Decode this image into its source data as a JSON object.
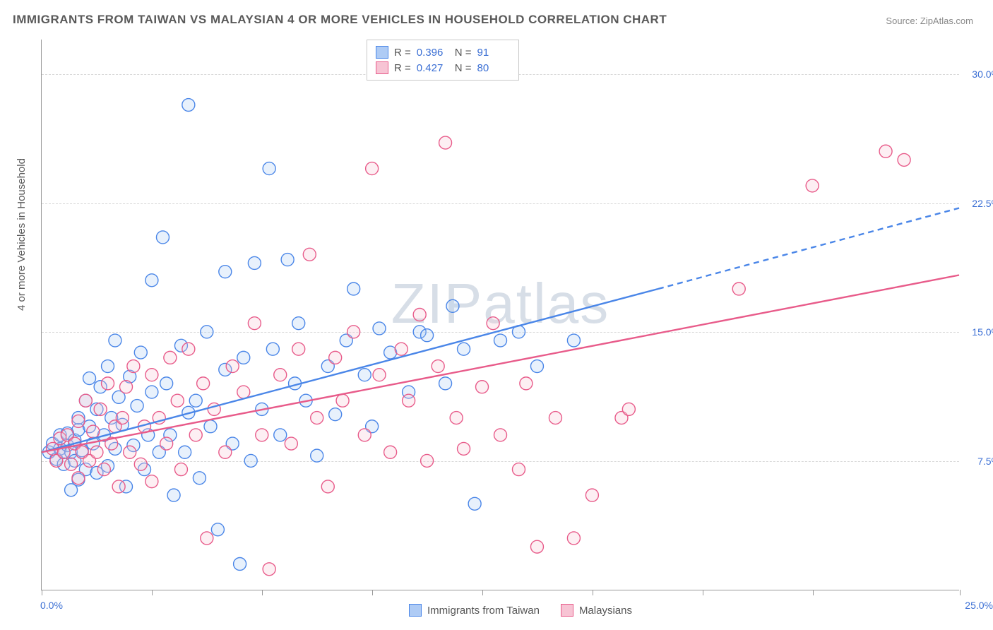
{
  "title": "IMMIGRANTS FROM TAIWAN VS MALAYSIAN 4 OR MORE VEHICLES IN HOUSEHOLD CORRELATION CHART",
  "source_label": "Source:",
  "source_name": "ZipAtlas.com",
  "watermark": "ZIPatlas",
  "y_axis_title": "4 or more Vehicles in Household",
  "chart": {
    "type": "scatter",
    "xlim": [
      0,
      25
    ],
    "ylim": [
      0,
      32
    ],
    "x_ticks": [
      0,
      3,
      6,
      9,
      12,
      15,
      18,
      21,
      25
    ],
    "x_label_min": "0.0%",
    "x_label_max": "25.0%",
    "y_gridlines": [
      7.5,
      15.0,
      22.5,
      30.0
    ],
    "y_tick_labels": [
      "7.5%",
      "15.0%",
      "22.5%",
      "30.0%"
    ],
    "background_color": "#ffffff",
    "grid_color": "#d8d8d8",
    "marker_radius": 9,
    "marker_stroke_width": 1.4,
    "marker_fill_opacity": 0.28,
    "series": [
      {
        "name": "Immigrants from Taiwan",
        "color_stroke": "#4a86e8",
        "color_fill": "#aecbf5",
        "R": "0.396",
        "N": "91",
        "trend": {
          "x1": 0,
          "y1": 8.0,
          "x2_solid": 16.8,
          "y2_solid": 17.5,
          "x2_dash": 25,
          "y2_dash": 22.2,
          "width": 2.4
        },
        "points": [
          [
            0.2,
            8.0
          ],
          [
            0.3,
            8.5
          ],
          [
            0.4,
            7.6
          ],
          [
            0.5,
            8.2
          ],
          [
            0.5,
            9.0
          ],
          [
            0.6,
            8.0
          ],
          [
            0.6,
            7.3
          ],
          [
            0.7,
            9.1
          ],
          [
            0.7,
            8.4
          ],
          [
            0.8,
            8.0
          ],
          [
            0.8,
            5.8
          ],
          [
            0.9,
            8.7
          ],
          [
            0.9,
            7.5
          ],
          [
            1.0,
            9.3
          ],
          [
            1.0,
            10.0
          ],
          [
            1.0,
            6.4
          ],
          [
            1.1,
            8.1
          ],
          [
            1.2,
            11.0
          ],
          [
            1.2,
            7.0
          ],
          [
            1.3,
            9.5
          ],
          [
            1.3,
            12.3
          ],
          [
            1.4,
            8.5
          ],
          [
            1.5,
            10.5
          ],
          [
            1.5,
            6.8
          ],
          [
            1.6,
            11.8
          ],
          [
            1.7,
            9.0
          ],
          [
            1.8,
            13.0
          ],
          [
            1.8,
            7.2
          ],
          [
            1.9,
            10.0
          ],
          [
            2.0,
            8.2
          ],
          [
            2.0,
            14.5
          ],
          [
            2.1,
            11.2
          ],
          [
            2.2,
            9.6
          ],
          [
            2.3,
            6.0
          ],
          [
            2.4,
            12.4
          ],
          [
            2.5,
            8.4
          ],
          [
            2.6,
            10.7
          ],
          [
            2.7,
            13.8
          ],
          [
            2.8,
            7.0
          ],
          [
            2.9,
            9.0
          ],
          [
            3.0,
            11.5
          ],
          [
            3.0,
            18.0
          ],
          [
            3.2,
            8.0
          ],
          [
            3.3,
            20.5
          ],
          [
            3.4,
            12.0
          ],
          [
            3.5,
            9.0
          ],
          [
            3.6,
            5.5
          ],
          [
            3.8,
            14.2
          ],
          [
            3.9,
            8.0
          ],
          [
            4.0,
            10.3
          ],
          [
            4.0,
            28.2
          ],
          [
            4.2,
            11.0
          ],
          [
            4.3,
            6.5
          ],
          [
            4.5,
            15.0
          ],
          [
            4.6,
            9.5
          ],
          [
            4.8,
            3.5
          ],
          [
            5.0,
            18.5
          ],
          [
            5.0,
            12.8
          ],
          [
            5.2,
            8.5
          ],
          [
            5.4,
            1.5
          ],
          [
            5.5,
            13.5
          ],
          [
            5.7,
            7.5
          ],
          [
            5.8,
            19.0
          ],
          [
            6.0,
            10.5
          ],
          [
            6.2,
            24.5
          ],
          [
            6.3,
            14.0
          ],
          [
            6.5,
            9.0
          ],
          [
            6.7,
            19.2
          ],
          [
            6.9,
            12.0
          ],
          [
            7.0,
            15.5
          ],
          [
            7.2,
            11.0
          ],
          [
            7.5,
            7.8
          ],
          [
            7.8,
            13.0
          ],
          [
            8.0,
            10.2
          ],
          [
            8.3,
            14.5
          ],
          [
            8.5,
            17.5
          ],
          [
            8.8,
            12.5
          ],
          [
            9.0,
            9.5
          ],
          [
            9.2,
            15.2
          ],
          [
            9.5,
            13.8
          ],
          [
            10.0,
            11.5
          ],
          [
            10.3,
            15.0
          ],
          [
            10.5,
            14.8
          ],
          [
            11.0,
            12.0
          ],
          [
            11.2,
            16.5
          ],
          [
            11.5,
            14.0
          ],
          [
            11.8,
            5.0
          ],
          [
            12.5,
            14.5
          ],
          [
            13.0,
            15.0
          ],
          [
            13.5,
            13.0
          ],
          [
            14.5,
            14.5
          ]
        ]
      },
      {
        "name": "Malaysians",
        "color_stroke": "#e85b8a",
        "color_fill": "#f7c4d4",
        "R": "0.427",
        "N": "80",
        "trend": {
          "x1": 0,
          "y1": 8.0,
          "x2_solid": 25,
          "y2_solid": 18.3,
          "x2_dash": 25,
          "y2_dash": 18.3,
          "width": 2.4
        },
        "points": [
          [
            0.3,
            8.2
          ],
          [
            0.4,
            7.5
          ],
          [
            0.5,
            8.8
          ],
          [
            0.6,
            8.0
          ],
          [
            0.7,
            9.0
          ],
          [
            0.8,
            7.3
          ],
          [
            0.9,
            8.5
          ],
          [
            1.0,
            9.8
          ],
          [
            1.0,
            6.5
          ],
          [
            1.1,
            8.0
          ],
          [
            1.2,
            11.0
          ],
          [
            1.3,
            7.5
          ],
          [
            1.4,
            9.2
          ],
          [
            1.5,
            8.0
          ],
          [
            1.6,
            10.5
          ],
          [
            1.7,
            7.0
          ],
          [
            1.8,
            12.0
          ],
          [
            1.9,
            8.5
          ],
          [
            2.0,
            9.5
          ],
          [
            2.1,
            6.0
          ],
          [
            2.2,
            10.0
          ],
          [
            2.3,
            11.8
          ],
          [
            2.4,
            8.0
          ],
          [
            2.5,
            13.0
          ],
          [
            2.7,
            7.3
          ],
          [
            2.8,
            9.5
          ],
          [
            3.0,
            12.5
          ],
          [
            3.0,
            6.3
          ],
          [
            3.2,
            10.0
          ],
          [
            3.4,
            8.5
          ],
          [
            3.5,
            13.5
          ],
          [
            3.7,
            11.0
          ],
          [
            3.8,
            7.0
          ],
          [
            4.0,
            14.0
          ],
          [
            4.2,
            9.0
          ],
          [
            4.4,
            12.0
          ],
          [
            4.5,
            3.0
          ],
          [
            4.7,
            10.5
          ],
          [
            5.0,
            8.0
          ],
          [
            5.2,
            13.0
          ],
          [
            5.5,
            11.5
          ],
          [
            5.8,
            15.5
          ],
          [
            6.0,
            9.0
          ],
          [
            6.2,
            1.2
          ],
          [
            6.5,
            12.5
          ],
          [
            6.8,
            8.5
          ],
          [
            7.0,
            14.0
          ],
          [
            7.3,
            19.5
          ],
          [
            7.5,
            10.0
          ],
          [
            7.8,
            6.0
          ],
          [
            8.0,
            13.5
          ],
          [
            8.2,
            11.0
          ],
          [
            8.5,
            15.0
          ],
          [
            8.8,
            9.0
          ],
          [
            9.0,
            24.5
          ],
          [
            9.2,
            12.5
          ],
          [
            9.5,
            8.0
          ],
          [
            9.8,
            14.0
          ],
          [
            10.0,
            11.0
          ],
          [
            10.3,
            16.0
          ],
          [
            10.5,
            7.5
          ],
          [
            10.8,
            13.0
          ],
          [
            11.0,
            26.0
          ],
          [
            11.3,
            10.0
          ],
          [
            11.5,
            8.2
          ],
          [
            12.0,
            11.8
          ],
          [
            12.3,
            15.5
          ],
          [
            12.5,
            9.0
          ],
          [
            13.0,
            7.0
          ],
          [
            13.2,
            12.0
          ],
          [
            13.5,
            2.5
          ],
          [
            14.0,
            10.0
          ],
          [
            14.5,
            3.0
          ],
          [
            15.0,
            5.5
          ],
          [
            15.8,
            10.0
          ],
          [
            16.0,
            10.5
          ],
          [
            19.0,
            17.5
          ],
          [
            21.0,
            23.5
          ],
          [
            23.0,
            25.5
          ],
          [
            23.5,
            25.0
          ]
        ]
      }
    ]
  },
  "legend_bottom": [
    {
      "label": "Immigrants from Taiwan",
      "stroke": "#4a86e8",
      "fill": "#aecbf5"
    },
    {
      "label": "Malaysians",
      "stroke": "#e85b8a",
      "fill": "#f7c4d4"
    }
  ]
}
